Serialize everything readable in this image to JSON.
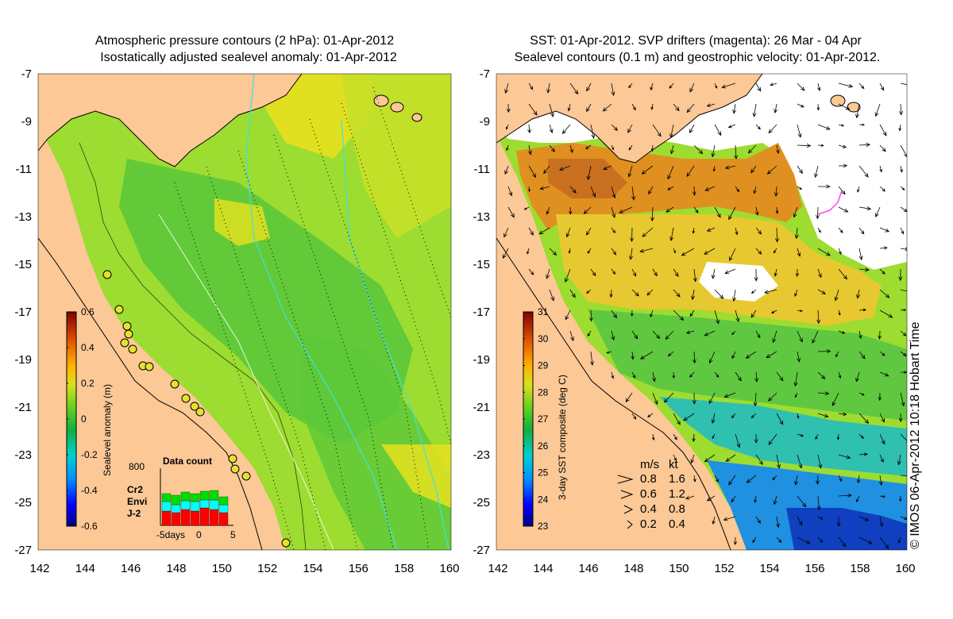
{
  "left_panel": {
    "title_line1": "Atmospheric pressure contours (2 hPa): 01-Apr-2012",
    "title_line2": "Isostatically adjusted sealevel anomaly: 01-Apr-2012",
    "colorbar": {
      "label": "Sealevel anomaly (m)",
      "ticks": [
        "0.6",
        "0.4",
        "0.2",
        "0",
        "-0.2",
        "-0.4",
        "-0.6"
      ],
      "colors": [
        "#00007f",
        "#0000ff",
        "#0080ff",
        "#00e0ff",
        "#20c060",
        "#00c000",
        "#80e000",
        "#e0e000",
        "#ffb000",
        "#e06000",
        "#a01000",
        "#7f0000"
      ]
    },
    "data_count": {
      "title": "Data count",
      "ymax_label": "800",
      "xaxis_label": "-5days",
      "xticks": [
        "0",
        "5"
      ],
      "legend": [
        {
          "label": "Cr2",
          "color": "#00dd00"
        },
        {
          "label": "Envi",
          "color": "#00ffff"
        },
        {
          "label": "J-2",
          "color": "#ff0000"
        }
      ]
    }
  },
  "right_panel": {
    "title_line1": "SST: 01-Apr-2012. SVP drifters (magenta): 26 Mar - 04 Apr",
    "title_line2": "Sealevel contours (0.1 m) and geostrophic velocity: 01-Apr-2012.",
    "colorbar": {
      "label": "3-day SST composite (deg C)",
      "ticks": [
        "31",
        "30",
        "29",
        "28",
        "27",
        "26",
        "25",
        "24",
        "23"
      ],
      "colors": [
        "#00007f",
        "#0000ff",
        "#0080ff",
        "#00e0ff",
        "#20c060",
        "#00c000",
        "#80e000",
        "#e0e000",
        "#ffb000",
        "#e06000",
        "#a01000",
        "#7f0000"
      ]
    },
    "velocity_legend": {
      "header_ms": "m/s",
      "header_kt": "kt",
      "rows": [
        {
          "ms": "0.8",
          "kt": "1.6"
        },
        {
          "ms": "0.6",
          "kt": "1.2"
        },
        {
          "ms": "0.4",
          "kt": "0.8"
        },
        {
          "ms": "0.2",
          "kt": "0.4"
        }
      ]
    }
  },
  "axes": {
    "x_ticks": [
      "142",
      "144",
      "146",
      "148",
      "150",
      "152",
      "154",
      "156",
      "158",
      "160"
    ],
    "y_ticks": [
      "-7",
      "-9",
      "-11",
      "-13",
      "-15",
      "-17",
      "-19",
      "-21",
      "-23",
      "-25",
      "-27"
    ]
  },
  "copyright": "© IMOS 06-Apr-2012 10:18 Hobart Time",
  "colors": {
    "land": "#fbc896",
    "sea_green": "#60c830",
    "sea_light": "#a8e030",
    "sea_yellow": "#e8e820",
    "sst_orange": "#e09020",
    "sst_cloud": "#ffffff",
    "sst_blue": "#2080e0"
  }
}
